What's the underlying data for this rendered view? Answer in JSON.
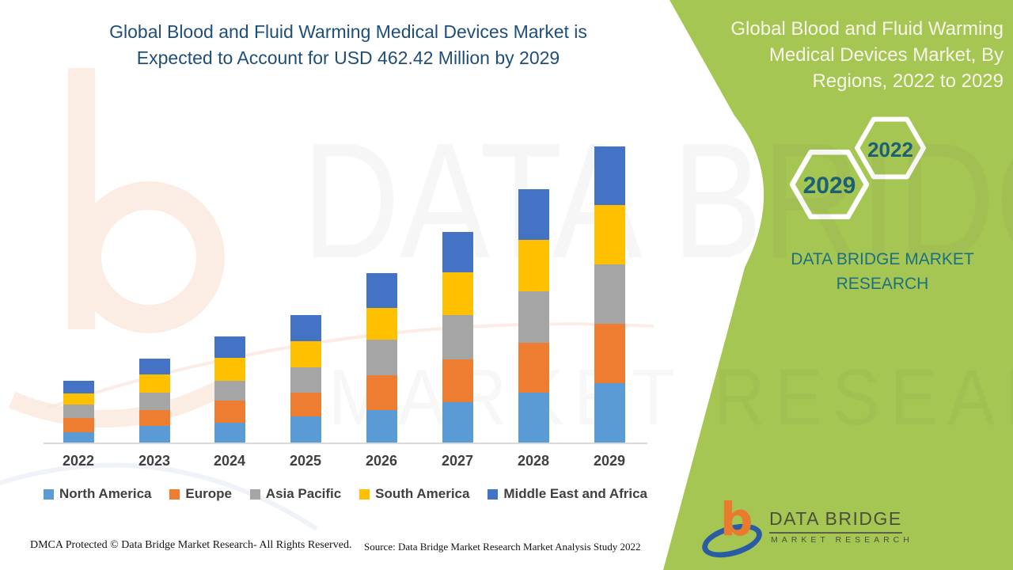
{
  "title": {
    "line1": "Global Blood and Fluid Warming Medical Devices Market is",
    "line2": "Expected to Account for USD 462.42 Million by 2029"
  },
  "side_panel": {
    "title": "Global Blood and Fluid Warming Medical Devices Market, By Regions, 2022 to 2029",
    "hexagons": [
      {
        "label": "2029"
      },
      {
        "label": "2022"
      }
    ],
    "brand_line1": "DATA BRIDGE MARKET",
    "brand_line2": "RESEARCH",
    "colors": {
      "background": "#a6c653",
      "title_text": "#f7f5ea",
      "hexagon_stroke": "#ffffff",
      "hexagon_text": "#1c6076",
      "brand_text": "#1d7080"
    }
  },
  "chart_data": {
    "type": "bar",
    "stacked": true,
    "categories": [
      "2022",
      "2023",
      "2024",
      "2025",
      "2026",
      "2027",
      "2028",
      "2029"
    ],
    "series": [
      {
        "name": "North America",
        "color": "#5B9BD5",
        "values": [
          16.7,
          26.5,
          31.5,
          41.4,
          51.2,
          63.6,
          78.4,
          93.2
        ]
      },
      {
        "name": "Europe",
        "color": "#ED7D31",
        "values": [
          22.2,
          24.7,
          34.6,
          37.0,
          53.7,
          66.7,
          77.8,
          92.6
        ]
      },
      {
        "name": "Asia Pacific",
        "color": "#A5A5A5",
        "values": [
          21.0,
          27.2,
          30.9,
          39.1,
          55.6,
          69.1,
          80.3,
          92.6
        ]
      },
      {
        "name": "South America",
        "color": "#FFC000",
        "values": [
          17.3,
          28.4,
          35.8,
          40.3,
          50.0,
          66.7,
          80.3,
          92.6
        ]
      },
      {
        "name": "Middle East and Africa",
        "color": "#4472C4",
        "values": [
          19.8,
          24.7,
          32.5,
          40.7,
          54.3,
          63.0,
          79.0,
          91.4
        ]
      }
    ],
    "totals": [
      97.0,
      131.5,
      165.3,
      198.5,
      264.8,
      329.1,
      395.8,
      462.42
    ],
    "unit": "USD Million",
    "values_note": "Segment values estimated from bar heights; 2029 total anchored to USD 462.42 Million stated in title",
    "xlabel": "",
    "ylabel": "",
    "y_axis_visible": false,
    "grid": false,
    "legend_position": "bottom",
    "axis_line_color": "#d9d9d9",
    "label_color": "#404040"
  },
  "footer": {
    "dmca": "DMCA Protected © Data Bridge Market Research- All Rights Reserved.",
    "source": "Source: Data Bridge Market Research Market Analysis Study 2022"
  },
  "logo": {
    "glyph": "b",
    "name": "DATA BRIDGE",
    "subtitle": "MARKET RESEARCH"
  },
  "watermark": {
    "text1": "DATA BRIDGE",
    "text2": "MARKET RESEARCH"
  }
}
